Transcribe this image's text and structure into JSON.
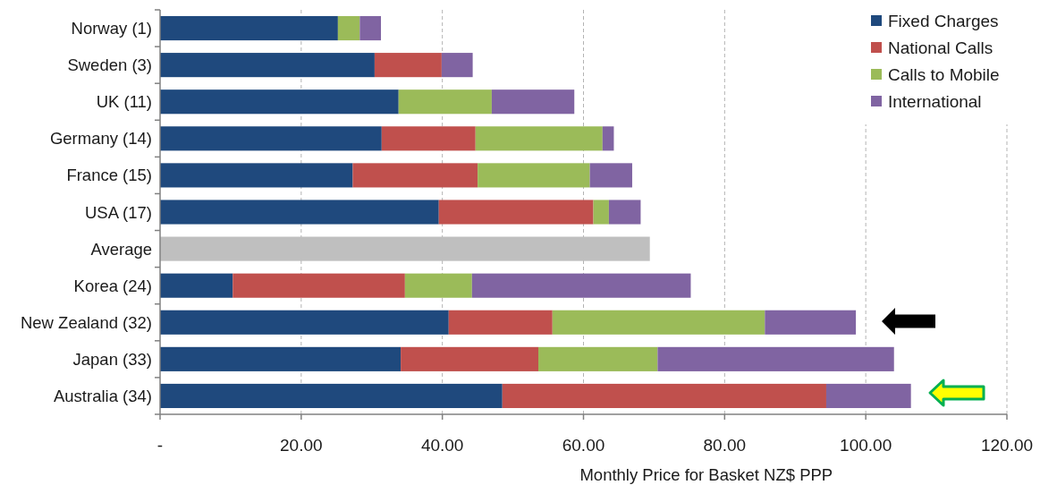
{
  "chart_data": {
    "type": "bar",
    "orientation": "horizontal",
    "stacked": true,
    "categories": [
      "Norway (1)",
      "Sweden (3)",
      "UK (11)",
      "Germany (14)",
      "France (15)",
      "USA (17)",
      "Average",
      "Korea (24)",
      "New Zealand (32)",
      "Japan (33)",
      "Australia (34)"
    ],
    "series": [
      {
        "name": "Fixed Charges",
        "color": "#1f497d",
        "values": [
          25.2,
          30.4,
          33.8,
          31.4,
          27.3,
          39.5,
          null,
          10.3,
          40.9,
          34.1,
          48.5
        ]
      },
      {
        "name": "National Calls",
        "color": "#c0504d",
        "values": [
          0,
          9.5,
          0,
          13.3,
          17.7,
          21.9,
          null,
          24.4,
          14.7,
          19.5,
          45.9
        ]
      },
      {
        "name": "Calls to Mobile",
        "color": "#9bbb59",
        "values": [
          3.1,
          0,
          13.2,
          18.0,
          15.9,
          2.2,
          null,
          9.5,
          30.1,
          16.9,
          0
        ]
      },
      {
        "name": "International",
        "color": "#8064a2",
        "values": [
          3.0,
          4.4,
          11.7,
          1.6,
          6.0,
          4.5,
          null,
          31.0,
          12.9,
          33.5,
          12.0
        ]
      },
      {
        "color": "#bfbfbf",
        "values": [
          null,
          null,
          null,
          null,
          null,
          null,
          69.4,
          null,
          null,
          null,
          null
        ]
      }
    ],
    "xlim": [
      0,
      120
    ],
    "xticks": [
      {
        "value": 0,
        "label": "-"
      },
      {
        "value": 20,
        "label": "20.00"
      },
      {
        "value": 40,
        "label": "40.00"
      },
      {
        "value": 60,
        "label": "60.00"
      },
      {
        "value": 80,
        "label": "80.00"
      },
      {
        "value": 100,
        "label": "100.00"
      },
      {
        "value": 120,
        "label": "120.00"
      }
    ],
    "xlabel": "Monthly Price for Basket NZ$ PPP",
    "grid": "x",
    "legend": "top right"
  }
}
